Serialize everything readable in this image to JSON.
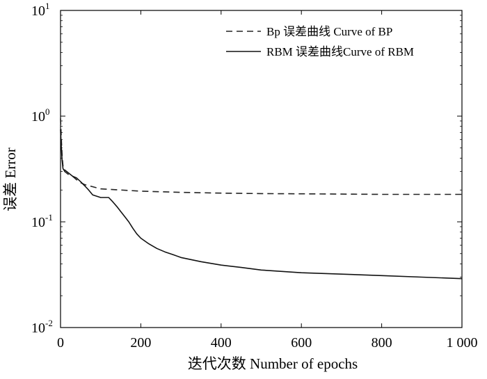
{
  "chart_data": {
    "type": "line",
    "xlabel": "迭代次数 Number of epochs",
    "ylabel": "误差 Error",
    "xlim": [
      0,
      1000
    ],
    "ylim": [
      0.01,
      10
    ],
    "yscale": "log",
    "grid": false,
    "legend_position": "top-right",
    "x_ticks": [
      {
        "value": 0,
        "label": "0"
      },
      {
        "value": 200,
        "label": "200"
      },
      {
        "value": 400,
        "label": "400"
      },
      {
        "value": 600,
        "label": "600"
      },
      {
        "value": 800,
        "label": "800"
      },
      {
        "value": 1000,
        "label": "1 000"
      }
    ],
    "y_ticks": [
      {
        "value": 0.01,
        "base": "10",
        "exp": "-2"
      },
      {
        "value": 0.1,
        "base": "10",
        "exp": "-1"
      },
      {
        "value": 1,
        "base": "10",
        "exp": "0"
      },
      {
        "value": 10,
        "base": "10",
        "exp": "1"
      }
    ],
    "series": [
      {
        "name": "Bp 误差曲线 Curve of  BP",
        "style": "dashed",
        "color": "#222222",
        "x": [
          0,
          2,
          4,
          6,
          8,
          10,
          15,
          20,
          30,
          40,
          50,
          60,
          80,
          100,
          150,
          200,
          300,
          400,
          500,
          600,
          700,
          800,
          900,
          1000
        ],
        "y": [
          0.95,
          0.6,
          0.42,
          0.34,
          0.31,
          0.3,
          0.29,
          0.28,
          0.27,
          0.25,
          0.235,
          0.225,
          0.215,
          0.205,
          0.2,
          0.195,
          0.19,
          0.187,
          0.185,
          0.184,
          0.183,
          0.182,
          0.182,
          0.182
        ]
      },
      {
        "name": "RBM 误差曲线Curve of  RBM",
        "style": "solid",
        "color": "#111111",
        "x": [
          0,
          2,
          4,
          6,
          8,
          10,
          15,
          20,
          30,
          40,
          50,
          60,
          70,
          80,
          90,
          100,
          110,
          120,
          130,
          140,
          150,
          160,
          170,
          180,
          190,
          200,
          220,
          240,
          260,
          280,
          300,
          350,
          400,
          450,
          500,
          600,
          700,
          800,
          900,
          1000
        ],
        "y": [
          0.75,
          0.5,
          0.38,
          0.32,
          0.31,
          0.31,
          0.3,
          0.29,
          0.27,
          0.26,
          0.24,
          0.22,
          0.2,
          0.18,
          0.175,
          0.17,
          0.17,
          0.17,
          0.155,
          0.14,
          0.125,
          0.112,
          0.1,
          0.087,
          0.077,
          0.07,
          0.062,
          0.056,
          0.052,
          0.049,
          0.046,
          0.042,
          0.039,
          0.037,
          0.035,
          0.033,
          0.032,
          0.031,
          0.03,
          0.029
        ]
      }
    ]
  }
}
